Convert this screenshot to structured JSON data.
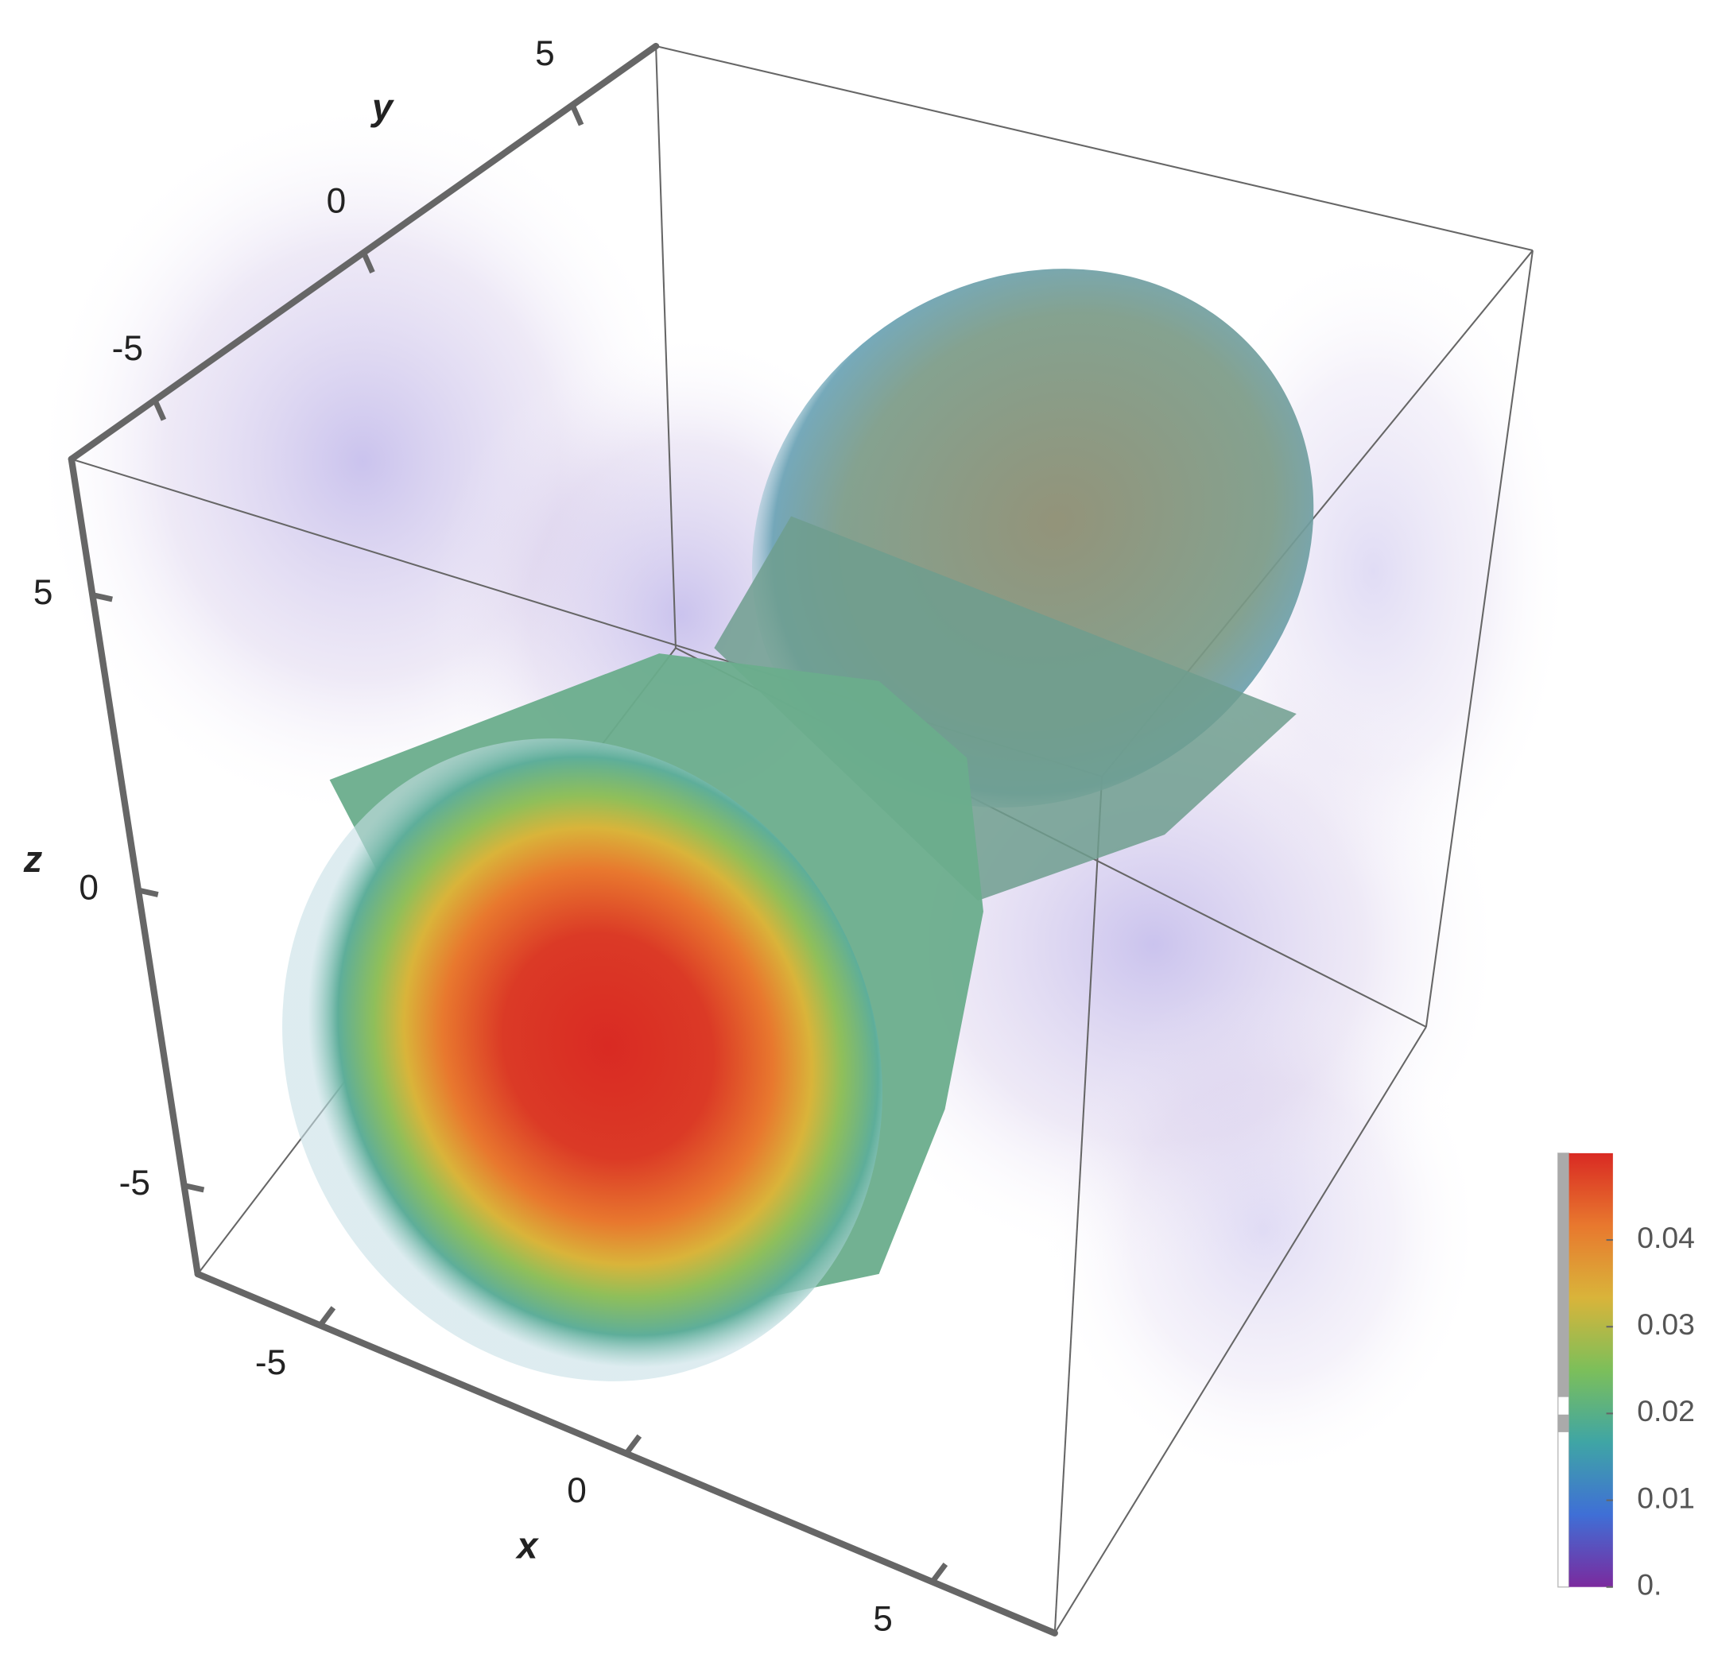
{
  "chart_data": {
    "type": "density3d",
    "axis_labels": {
      "x": "x",
      "y": "y",
      "z": "z"
    },
    "xlim": [
      -7,
      7
    ],
    "ylim": [
      -7,
      7
    ],
    "zlim": [
      -6.5,
      7.3
    ],
    "xticks": [
      -5,
      0,
      5
    ],
    "yticks": [
      -5,
      0,
      5
    ],
    "zticks": [
      -5,
      0,
      5
    ],
    "colorbar": {
      "lim": [
        0,
        0.05
      ],
      "ticks": [
        {
          "value": 0,
          "label": "0."
        },
        0.01,
        0.02,
        0.03,
        0.04
      ],
      "colors": [
        "#7b2a9e",
        "#3f6fd6",
        "#3fa5a5",
        "#7cbf5a",
        "#d9b43a",
        "#e8782e",
        "#d92a23"
      ]
    }
  }
}
